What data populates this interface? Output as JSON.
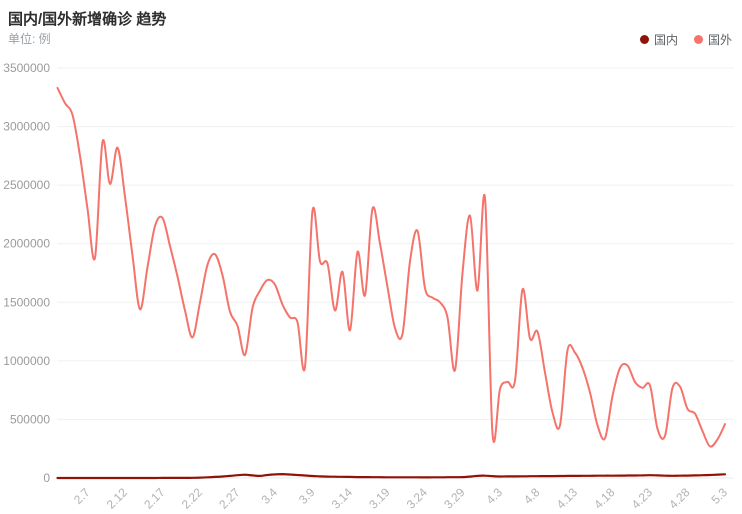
{
  "header": {
    "title": "国内/国外新增确诊 趋势",
    "subtitle": "单位: 例"
  },
  "legend": {
    "items": [
      {
        "label": "国内",
        "color": "#8e1309"
      },
      {
        "label": "国外",
        "color": "#f4736b"
      }
    ]
  },
  "chart_data": {
    "type": "line",
    "title": "国内/国外新增确诊 趋势",
    "xlabel": "",
    "ylabel": "例",
    "ylim": [
      0,
      3500000
    ],
    "yticks": [
      0,
      500000,
      1000000,
      1500000,
      2000000,
      2500000,
      3000000,
      3500000
    ],
    "grid": true,
    "smooth": true,
    "legend_position": "top-right",
    "xticks_shown": [
      "2.7",
      "2.12",
      "2.17",
      "2.22",
      "2.27",
      "3.4",
      "3.9",
      "3.14",
      "3.19",
      "3.24",
      "3.29",
      "4.3",
      "4.8",
      "4.13",
      "4.18",
      "4.23",
      "4.28",
      "5.3"
    ],
    "x": [
      "2.3",
      "2.4",
      "2.5",
      "2.6",
      "2.7",
      "2.8",
      "2.9",
      "2.10",
      "2.11",
      "2.12",
      "2.13",
      "2.14",
      "2.15",
      "2.16",
      "2.17",
      "2.18",
      "2.19",
      "2.20",
      "2.21",
      "2.22",
      "2.23",
      "2.24",
      "2.25",
      "2.26",
      "2.27",
      "2.28",
      "3.1",
      "3.2",
      "3.3",
      "3.4",
      "3.5",
      "3.6",
      "3.7",
      "3.8",
      "3.9",
      "3.10",
      "3.11",
      "3.12",
      "3.13",
      "3.14",
      "3.15",
      "3.16",
      "3.17",
      "3.18",
      "3.19",
      "3.20",
      "3.21",
      "3.22",
      "3.23",
      "3.24",
      "3.25",
      "3.26",
      "3.27",
      "3.28",
      "3.29",
      "3.30",
      "3.31",
      "4.1",
      "4.2",
      "4.3",
      "4.4",
      "4.5",
      "4.6",
      "4.7",
      "4.8",
      "4.9",
      "4.10",
      "4.11",
      "4.12",
      "4.13",
      "4.14",
      "4.15",
      "4.16",
      "4.17",
      "4.18",
      "4.19",
      "4.20",
      "4.21",
      "4.22",
      "4.23",
      "4.24",
      "4.25",
      "4.26",
      "4.27",
      "4.28",
      "4.29",
      "4.30",
      "5.1",
      "5.2",
      "5.3"
    ],
    "series": [
      {
        "name": "国内",
        "color": "#8e1309",
        "values": [
          300,
          280,
          260,
          310,
          340,
          290,
          270,
          250,
          230,
          260,
          290,
          320,
          350,
          400,
          450,
          500,
          600,
          900,
          1500,
          3000,
          6000,
          9000,
          13000,
          18000,
          24000,
          28000,
          22000,
          18000,
          26000,
          31000,
          33000,
          30000,
          26000,
          21000,
          17000,
          14000,
          12000,
          11000,
          10000,
          9000,
          8000,
          7500,
          7000,
          6500,
          6000,
          6000,
          6000,
          5800,
          5600,
          5500,
          5600,
          6000,
          6500,
          7000,
          8000,
          12000,
          18000,
          20000,
          16000,
          13000,
          13500,
          14000,
          14500,
          15000,
          15500,
          16000,
          16500,
          17000,
          17500,
          18000,
          18500,
          19000,
          19500,
          20000,
          20000,
          20500,
          21000,
          21500,
          22500,
          24000,
          22000,
          20000,
          19000,
          19500,
          20500,
          22000,
          24000,
          26000,
          29000,
          32000
        ]
      },
      {
        "name": "国外",
        "color": "#f4736b",
        "values": [
          3330000,
          3200000,
          3100000,
          2750000,
          2300000,
          1880000,
          2870000,
          2510000,
          2820000,
          2400000,
          1900000,
          1440000,
          1800000,
          2150000,
          2220000,
          1980000,
          1720000,
          1430000,
          1200000,
          1500000,
          1820000,
          1910000,
          1730000,
          1420000,
          1300000,
          1050000,
          1450000,
          1600000,
          1690000,
          1650000,
          1480000,
          1370000,
          1330000,
          950000,
          2280000,
          1850000,
          1830000,
          1430000,
          1760000,
          1260000,
          1930000,
          1560000,
          2300000,
          2000000,
          1630000,
          1280000,
          1230000,
          1850000,
          2110000,
          1620000,
          1540000,
          1500000,
          1370000,
          920000,
          1750000,
          2240000,
          1600000,
          2390000,
          380000,
          760000,
          820000,
          830000,
          1610000,
          1190000,
          1250000,
          900000,
          560000,
          450000,
          1090000,
          1070000,
          940000,
          730000,
          450000,
          340000,
          700000,
          940000,
          960000,
          820000,
          770000,
          790000,
          420000,
          360000,
          770000,
          780000,
          590000,
          550000,
          400000,
          270000,
          330000,
          460000
        ]
      }
    ]
  }
}
